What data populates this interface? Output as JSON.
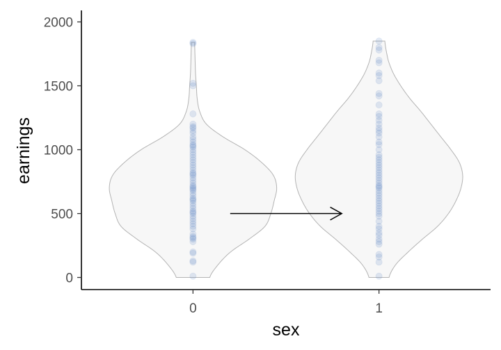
{
  "chart_data": {
    "type": "violin",
    "xlabel": "sex",
    "ylabel": "earnings",
    "categories": [
      "0",
      "1"
    ],
    "ylim": [
      -95,
      2090
    ],
    "yticks": [
      0,
      500,
      1000,
      1500,
      2000
    ],
    "grid": false,
    "legend": "none",
    "colors": {
      "violin_fill": "#f7f7f7",
      "violin_stroke": "#b3b3b3",
      "point": "#4f7fbf",
      "axis": "#000000",
      "arrow": "#000000"
    },
    "violins": [
      {
        "category": "0",
        "range": [
          0,
          1840
        ],
        "density": [
          [
            0,
            0.2
          ],
          [
            100,
            0.3
          ],
          [
            200,
            0.45
          ],
          [
            300,
            0.67
          ],
          [
            400,
            0.86
          ],
          [
            500,
            0.93
          ],
          [
            600,
            0.97
          ],
          [
            700,
            1.0
          ],
          [
            800,
            0.96
          ],
          [
            900,
            0.82
          ],
          [
            1000,
            0.62
          ],
          [
            1100,
            0.36
          ],
          [
            1200,
            0.16
          ],
          [
            1300,
            0.08
          ],
          [
            1400,
            0.05
          ],
          [
            1500,
            0.04
          ],
          [
            1600,
            0.03
          ],
          [
            1700,
            0.025
          ],
          [
            1840,
            0.02
          ]
        ]
      },
      {
        "category": "1",
        "range": [
          0,
          1850
        ],
        "density": [
          [
            0,
            0.12
          ],
          [
            100,
            0.2
          ],
          [
            200,
            0.35
          ],
          [
            300,
            0.52
          ],
          [
            400,
            0.7
          ],
          [
            500,
            0.83
          ],
          [
            600,
            0.92
          ],
          [
            700,
            0.98
          ],
          [
            800,
            1.0
          ],
          [
            900,
            0.96
          ],
          [
            1000,
            0.86
          ],
          [
            1100,
            0.74
          ],
          [
            1200,
            0.62
          ],
          [
            1300,
            0.5
          ],
          [
            1400,
            0.37
          ],
          [
            1500,
            0.26
          ],
          [
            1600,
            0.17
          ],
          [
            1700,
            0.11
          ],
          [
            1850,
            0.07
          ]
        ]
      }
    ],
    "points": [
      {
        "category": "0",
        "values": [
          10,
          120,
          130,
          190,
          200,
          280,
          300,
          310,
          320,
          340,
          380,
          400,
          420,
          440,
          460,
          480,
          500,
          510,
          520,
          540,
          560,
          580,
          600,
          610,
          620,
          640,
          660,
          680,
          690,
          700,
          710,
          720,
          740,
          760,
          780,
          800,
          810,
          820,
          840,
          860,
          880,
          900,
          920,
          940,
          960,
          980,
          1000,
          1020,
          1030,
          1040,
          1060,
          1080,
          1100,
          1130,
          1150,
          1170,
          1180,
          1200,
          1280,
          1500,
          1520,
          1830,
          1840
        ]
      },
      {
        "category": "1",
        "values": [
          10,
          120,
          160,
          180,
          260,
          280,
          300,
          330,
          350,
          380,
          400,
          440,
          480,
          500,
          520,
          540,
          560,
          580,
          600,
          620,
          640,
          660,
          680,
          700,
          710,
          720,
          740,
          760,
          780,
          800,
          820,
          840,
          860,
          880,
          900,
          920,
          940,
          960,
          1000,
          1040,
          1060,
          1100,
          1130,
          1150,
          1170,
          1200,
          1230,
          1260,
          1280,
          1350,
          1420,
          1440,
          1540,
          1580,
          1600,
          1680,
          1700,
          1780,
          1800,
          1850
        ]
      }
    ],
    "annotations": [
      {
        "type": "arrow",
        "from": {
          "x": "0",
          "x_offset": 0.2,
          "y": 500
        },
        "to": {
          "x": "1",
          "x_offset": -0.2,
          "y": 500
        }
      }
    ]
  }
}
